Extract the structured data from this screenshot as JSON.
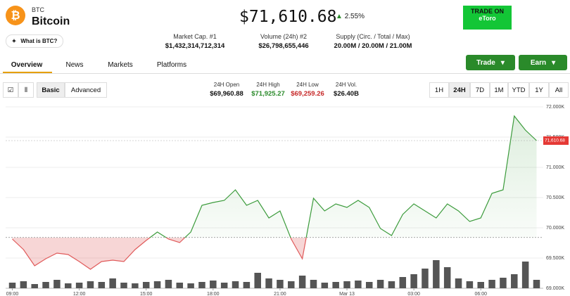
{
  "header": {
    "symbol": "BTC",
    "name": "Bitcoin",
    "price": "$71,610.68",
    "change": "2.55%",
    "what_is": "What is BTC?",
    "ad_title": "TRADE ON",
    "ad_brand": "eToro"
  },
  "stats": [
    {
      "label": "Market Cap. #1",
      "value": "$1,432,314,712,314"
    },
    {
      "label": "Volume (24h) #2",
      "value": "$26,798,655,446"
    },
    {
      "label": "Supply (Circ. / Total / Max)",
      "value": "20.00M / 20.00M / 21.00M"
    }
  ],
  "tabs": [
    "Overview",
    "News",
    "Markets",
    "Platforms"
  ],
  "buttons": [
    "Trade",
    "Earn"
  ],
  "modes": [
    "Basic",
    "Advanced"
  ],
  "summary": [
    {
      "label": "24H Open",
      "value": "$69,960.88"
    },
    {
      "label": "24H High",
      "value": "$71,925.27"
    },
    {
      "label": "24H Low",
      "value": "$69,259.26"
    },
    {
      "label": "24H Vol.",
      "value": "$26.40B"
    }
  ],
  "ranges": [
    "1H",
    "24H",
    "7D",
    "1M",
    "YTD",
    "1Y",
    "All"
  ],
  "chart_data": {
    "type": "line",
    "color": "#3b9b3b",
    "down_color": "#e05a5a",
    "baseline": 69840,
    "last_label": "71,610.68",
    "x": [
      0,
      0.5,
      1,
      1.5,
      2,
      2.5,
      3,
      3.5,
      4,
      4.5,
      5,
      5.5,
      6,
      6.5,
      7,
      7.5,
      8,
      8.5,
      9,
      9.5,
      10,
      10.5,
      11,
      11.5,
      12,
      12.5,
      13,
      13.5,
      14,
      14.5,
      15,
      15.5,
      16,
      16.5,
      17,
      17.5,
      18,
      18.5,
      19,
      19.5,
      20,
      20.5,
      21,
      21.5,
      22,
      22.5,
      23,
      23.5
    ],
    "values": [
      69814,
      69640,
      69372,
      69488,
      69581,
      69558,
      69442,
      69314,
      69442,
      69465,
      69442,
      69640,
      69791,
      69930,
      69814,
      69756,
      69930,
      70372,
      70419,
      70453,
      70628,
      70372,
      70453,
      70163,
      70279,
      69814,
      69488,
      70488,
      70279,
      70395,
      70337,
      70453,
      70337,
      69988,
      69872,
      70221,
      70395,
      70279,
      70163,
      70395,
      70279,
      70105,
      70163,
      70570,
      70628,
      71849,
      71616,
      71442
    ],
    "volume": [
      8,
      10,
      6,
      9,
      12,
      7,
      8,
      10,
      9,
      14,
      8,
      7,
      9,
      10,
      12,
      8,
      7,
      9,
      11,
      8,
      10,
      9,
      22,
      14,
      12,
      10,
      18,
      12,
      8,
      9,
      10,
      11,
      9,
      12,
      10,
      16,
      20,
      28,
      40,
      30,
      14,
      10,
      9,
      12,
      15,
      20,
      38,
      12
    ],
    "xlim": [
      -0.3,
      23.8
    ],
    "xticks": [
      {
        "value": 0,
        "label": "09:00"
      },
      {
        "value": 3,
        "label": "12:00"
      },
      {
        "value": 6,
        "label": "15:00"
      },
      {
        "value": 9,
        "label": "18:00"
      },
      {
        "value": 12,
        "label": "21:00"
      },
      {
        "value": 15,
        "label": "Mar 13"
      },
      {
        "value": 18,
        "label": "03:00"
      },
      {
        "value": 21,
        "label": "06:00"
      }
    ],
    "ylim": [
      69000,
      72000
    ],
    "yticks": [
      {
        "value": 69000,
        "label": "69.000K"
      },
      {
        "value": 69500,
        "label": "69.500K"
      },
      {
        "value": 70000,
        "label": "70.000K"
      },
      {
        "value": 70500,
        "label": "70.500K"
      },
      {
        "value": 71000,
        "label": "71.000K"
      },
      {
        "value": 71500,
        "label": "71.500K"
      },
      {
        "value": 72000,
        "label": "72.000K"
      }
    ],
    "grid": true
  }
}
